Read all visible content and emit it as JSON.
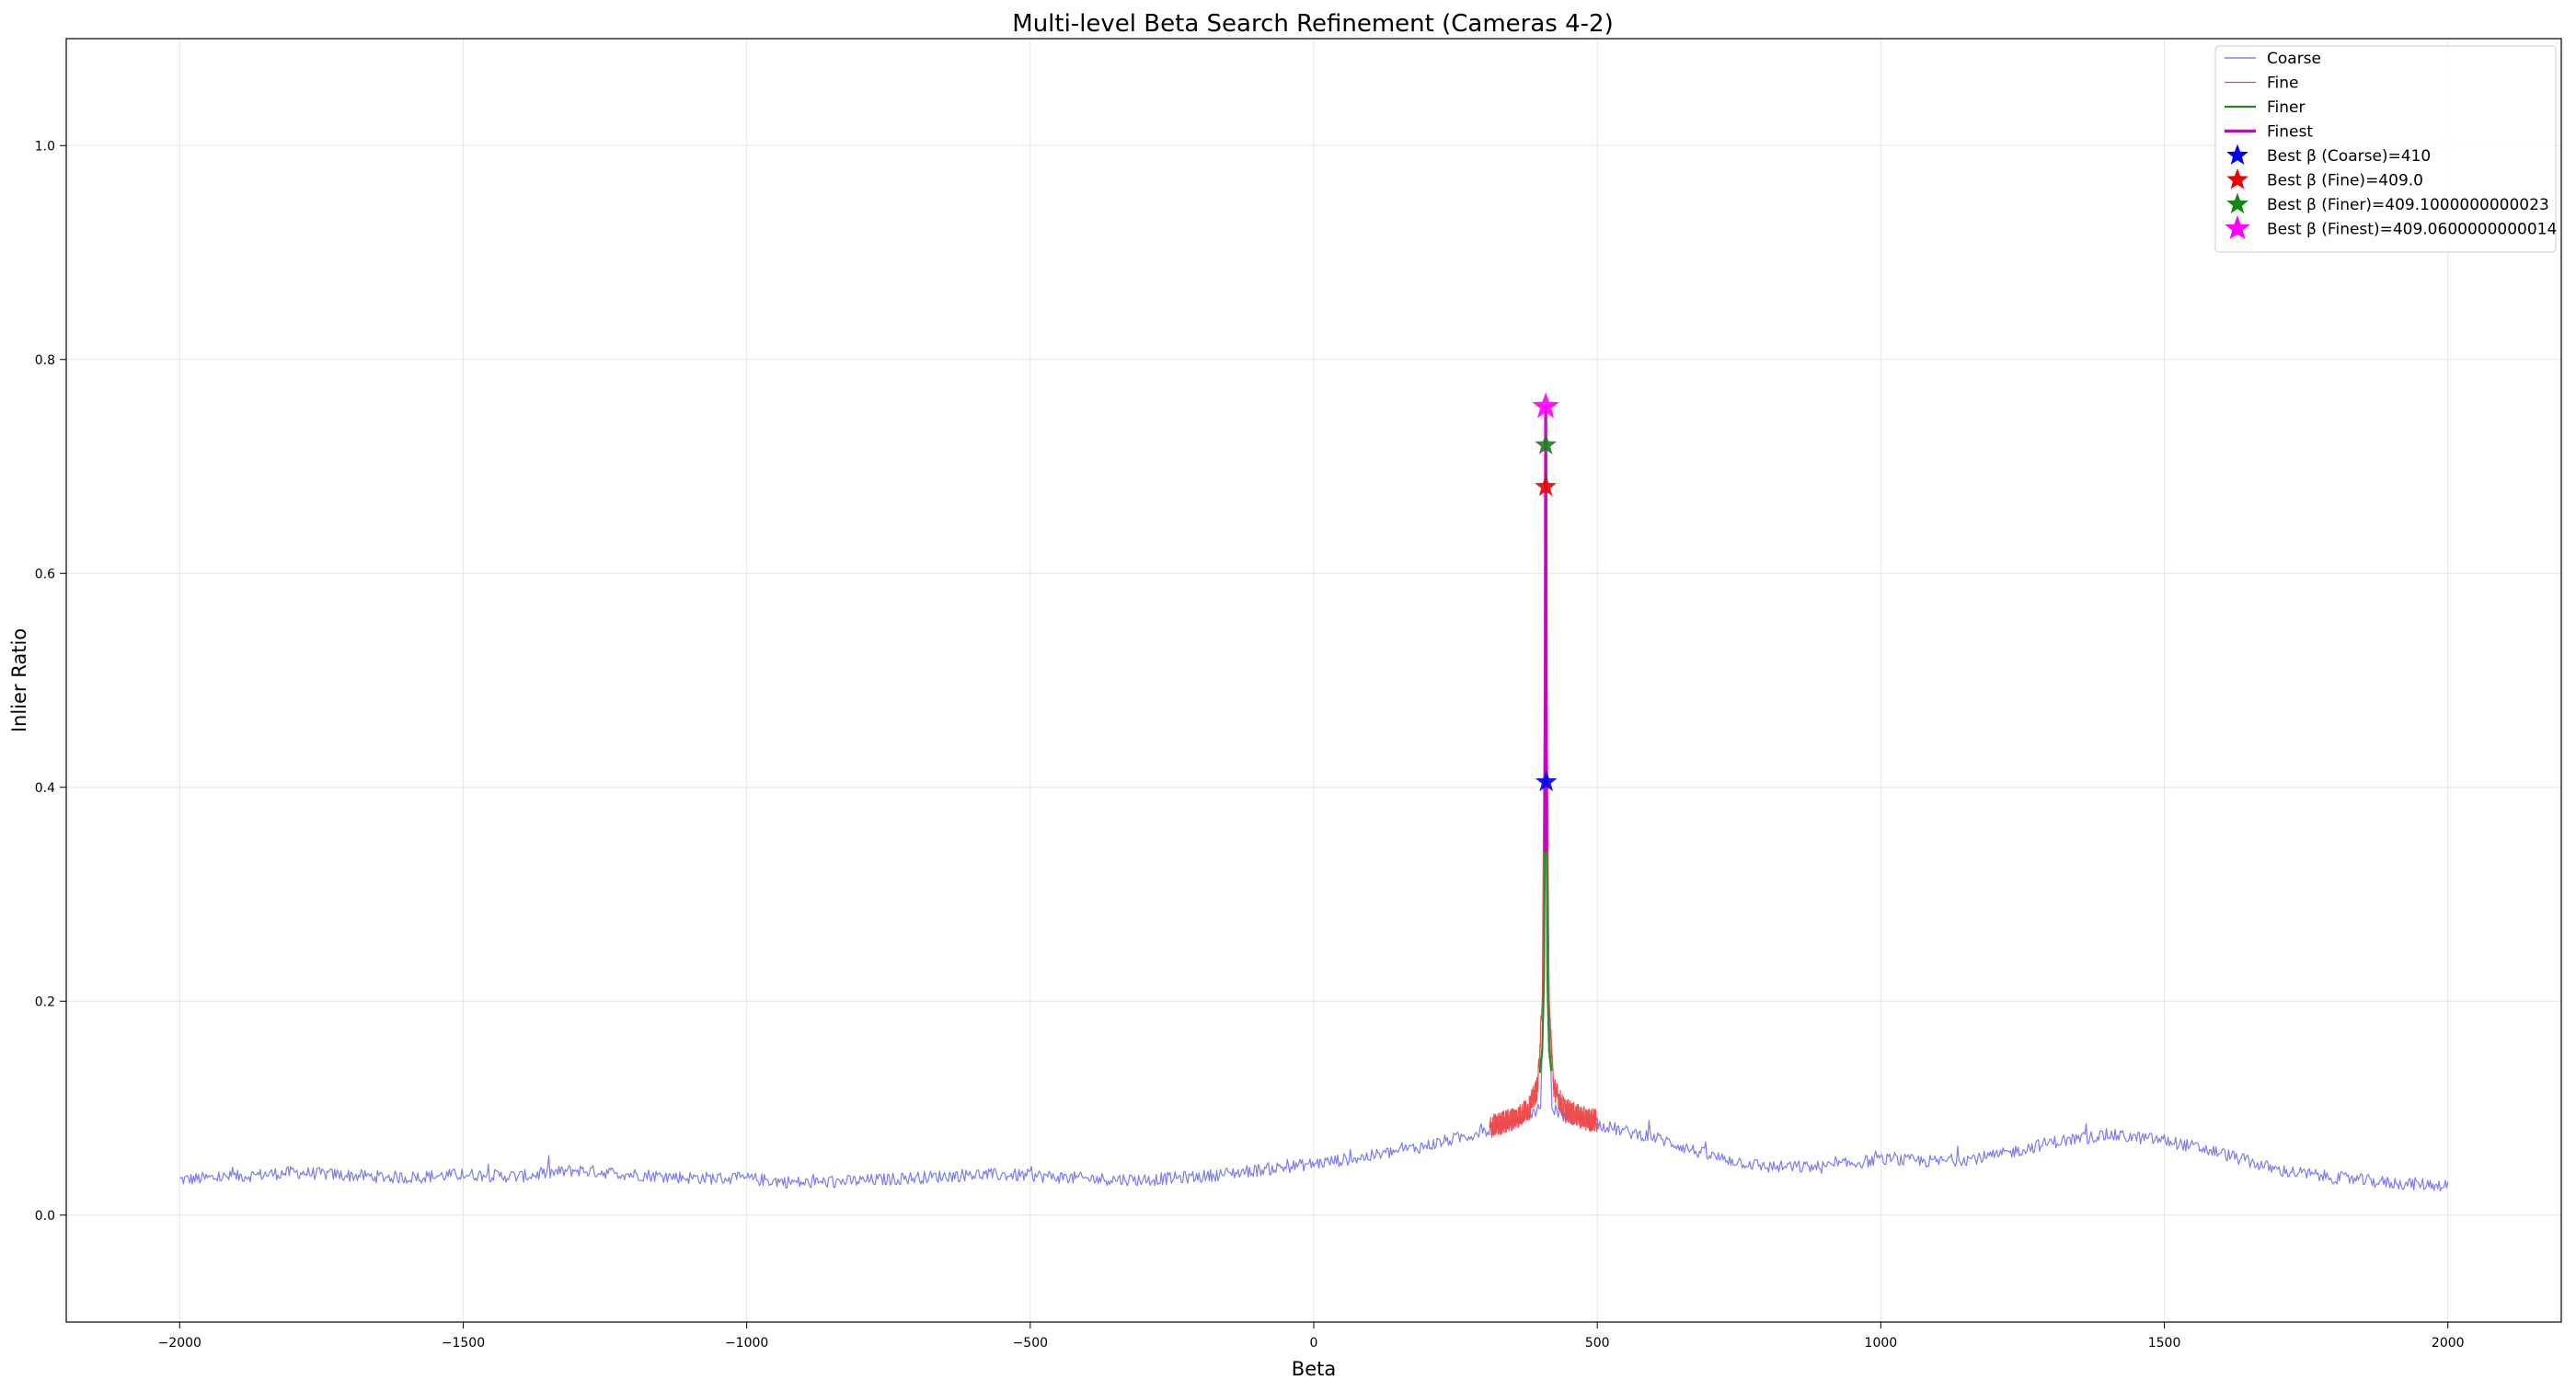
{
  "chart_data": {
    "type": "line",
    "title": "Multi-level Beta Search Refinement (Cameras 4-2)",
    "xlabel": "Beta",
    "ylabel": "Inlier Ratio",
    "xlim": [
      -2200,
      2200
    ],
    "ylim": [
      -0.1,
      1.1
    ],
    "x_ticks": [
      -2000,
      -1500,
      -1000,
      -500,
      0,
      500,
      1000,
      1500,
      2000
    ],
    "x_tick_labels": [
      "−2000",
      "−1500",
      "−1000",
      "−500",
      "0",
      "500",
      "1000",
      "1500",
      "2000"
    ],
    "y_ticks": [
      0.0,
      0.2,
      0.4,
      0.6,
      0.8,
      1.0
    ],
    "y_tick_labels": [
      "0.0",
      "0.2",
      "0.4",
      "0.6",
      "0.8",
      "1.0"
    ],
    "grid": true,
    "legend_position": "top-right",
    "series": [
      {
        "name": "Coarse",
        "color": "#6666ee",
        "style": "thin",
        "points": [
          [
            -2000,
            0.033
          ],
          [
            -1900,
            0.036
          ],
          [
            -1800,
            0.04
          ],
          [
            -1700,
            0.037
          ],
          [
            -1600,
            0.035
          ],
          [
            -1500,
            0.038
          ],
          [
            -1400,
            0.036
          ],
          [
            -1300,
            0.042
          ],
          [
            -1200,
            0.038
          ],
          [
            -1100,
            0.035
          ],
          [
            -1000,
            0.034
          ],
          [
            -900,
            0.03
          ],
          [
            -800,
            0.032
          ],
          [
            -700,
            0.035
          ],
          [
            -600,
            0.038
          ],
          [
            -500,
            0.037
          ],
          [
            -400,
            0.034
          ],
          [
            -300,
            0.033
          ],
          [
            -200,
            0.036
          ],
          [
            -100,
            0.042
          ],
          [
            0,
            0.048
          ],
          [
            100,
            0.055
          ],
          [
            200,
            0.065
          ],
          [
            300,
            0.078
          ],
          [
            350,
            0.085
          ],
          [
            400,
            0.1
          ],
          [
            405,
            0.2
          ],
          [
            410,
            0.405
          ],
          [
            415,
            0.2
          ],
          [
            420,
            0.1
          ],
          [
            450,
            0.09
          ],
          [
            500,
            0.085
          ],
          [
            550,
            0.078
          ],
          [
            600,
            0.073
          ],
          [
            700,
            0.055
          ],
          [
            800,
            0.045
          ],
          [
            900,
            0.045
          ],
          [
            1000,
            0.052
          ],
          [
            1100,
            0.05
          ],
          [
            1200,
            0.055
          ],
          [
            1300,
            0.068
          ],
          [
            1400,
            0.075
          ],
          [
            1500,
            0.07
          ],
          [
            1600,
            0.058
          ],
          [
            1700,
            0.042
          ],
          [
            1800,
            0.035
          ],
          [
            1900,
            0.03
          ],
          [
            2000,
            0.028
          ]
        ]
      },
      {
        "name": "Fine",
        "color": "#ee4444",
        "style": "thin",
        "points": [
          [
            310,
            0.082
          ],
          [
            340,
            0.088
          ],
          [
            360,
            0.092
          ],
          [
            380,
            0.1
          ],
          [
            395,
            0.12
          ],
          [
            403,
            0.2
          ],
          [
            409,
            0.68
          ],
          [
            415,
            0.2
          ],
          [
            423,
            0.12
          ],
          [
            440,
            0.1
          ],
          [
            460,
            0.094
          ],
          [
            480,
            0.09
          ],
          [
            500,
            0.088
          ]
        ]
      },
      {
        "name": "Finer",
        "color": "#228822",
        "style": "medium",
        "points": [
          [
            399,
            0.135
          ],
          [
            403,
            0.155
          ],
          [
            406,
            0.22
          ],
          [
            408,
            0.42
          ],
          [
            409.1,
            0.72
          ],
          [
            410.2,
            0.42
          ],
          [
            412,
            0.22
          ],
          [
            415,
            0.155
          ],
          [
            419,
            0.135
          ]
        ]
      },
      {
        "name": "Finest",
        "color": "#cc00cc",
        "style": "thick",
        "points": [
          [
            408.1,
            0.34
          ],
          [
            408.5,
            0.5
          ],
          [
            408.8,
            0.66
          ],
          [
            409.06,
            0.756
          ],
          [
            409.3,
            0.66
          ],
          [
            409.6,
            0.5
          ],
          [
            410,
            0.34
          ]
        ]
      }
    ],
    "markers": [
      {
        "label": "Best β (Coarse)=410",
        "x": 410,
        "y": 0.405,
        "color": "#0000ee"
      },
      {
        "label": "Best β (Fine)=409.0",
        "x": 409.0,
        "y": 0.681,
        "color": "#ee0000"
      },
      {
        "label": "Best β (Finer)=409.1000000000023",
        "x": 409.1,
        "y": 0.72,
        "color": "#118811"
      },
      {
        "label": "Best β (Finest)=409.0600000000014",
        "x": 409.06,
        "y": 0.756,
        "color": "#ff00ff"
      }
    ]
  }
}
